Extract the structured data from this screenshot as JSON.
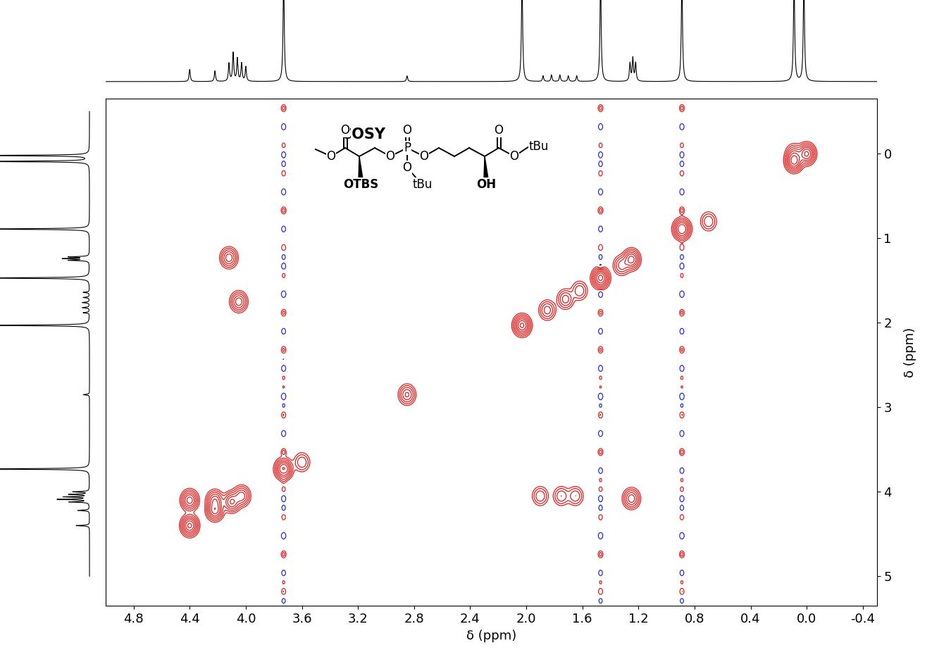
{
  "chart_data": {
    "type": "contour",
    "title": "COSY",
    "xlabel": "δ (ppm)",
    "ylabel": "δ (ppm)",
    "xlim": [
      5.0,
      -0.5
    ],
    "xticks": [
      4.8,
      4.4,
      4.0,
      3.6,
      3.2,
      2.8,
      2.4,
      2.0,
      1.6,
      1.2,
      0.8,
      0.4,
      0.0,
      -0.4
    ],
    "ylim": [
      5.35,
      -0.65
    ],
    "yticks": [
      0,
      1,
      2,
      3,
      4,
      5
    ],
    "color": "#e0201f",
    "negative_color": "#2a2ae0",
    "spectrum": {
      "shifts": [
        4.4,
        4.22,
        4.12,
        4.09,
        4.06,
        4.03,
        4.0,
        3.73,
        2.85,
        2.03,
        1.88,
        1.82,
        1.76,
        1.7,
        1.64,
        1.47,
        1.26,
        1.24,
        1.22,
        0.89,
        0.09,
        0.02
      ],
      "heights": [
        0.15,
        0.13,
        0.22,
        0.35,
        0.28,
        0.22,
        0.18,
        1.3,
        0.07,
        1.3,
        0.07,
        0.08,
        0.08,
        0.07,
        0.07,
        1.3,
        0.22,
        0.28,
        0.22,
        1.3,
        1.3,
        1.3
      ],
      "ylim": [
        0,
        1
      ]
    },
    "peaks": {
      "x": [
        4.4,
        4.4,
        4.22,
        4.22,
        4.1,
        4.03,
        3.73,
        3.6,
        2.85,
        2.03,
        1.85,
        1.72,
        1.62,
        1.47,
        1.32,
        1.25,
        0.89,
        0.7,
        0.09,
        0.0,
        4.12,
        4.05,
        1.9,
        1.75,
        1.65,
        1.25,
        0.09
      ],
      "y": [
        4.4,
        4.1,
        4.22,
        4.1,
        4.12,
        4.05,
        3.73,
        3.65,
        2.85,
        2.03,
        1.85,
        1.72,
        1.62,
        1.47,
        1.32,
        1.25,
        0.89,
        0.8,
        0.09,
        0.0,
        1.23,
        1.75,
        4.05,
        4.05,
        4.05,
        4.08,
        0.0
      ],
      "intensity": [
        1.0,
        0.8,
        0.8,
        0.6,
        0.7,
        0.6,
        1.0,
        0.3,
        0.5,
        1.0,
        0.4,
        0.4,
        0.3,
        1.0,
        0.4,
        0.8,
        1.0,
        0.3,
        1.0,
        1.0,
        0.6,
        0.6,
        0.3,
        0.3,
        0.3,
        0.6,
        0.4
      ]
    },
    "t1_noise_x": [
      3.73,
      1.47,
      0.89
    ],
    "structure": {
      "labels": [
        "O",
        "O",
        "OTBS",
        "O",
        "P",
        "O",
        "O",
        "tBu",
        "O",
        "OH",
        "O",
        "O",
        "tBu"
      ]
    }
  }
}
